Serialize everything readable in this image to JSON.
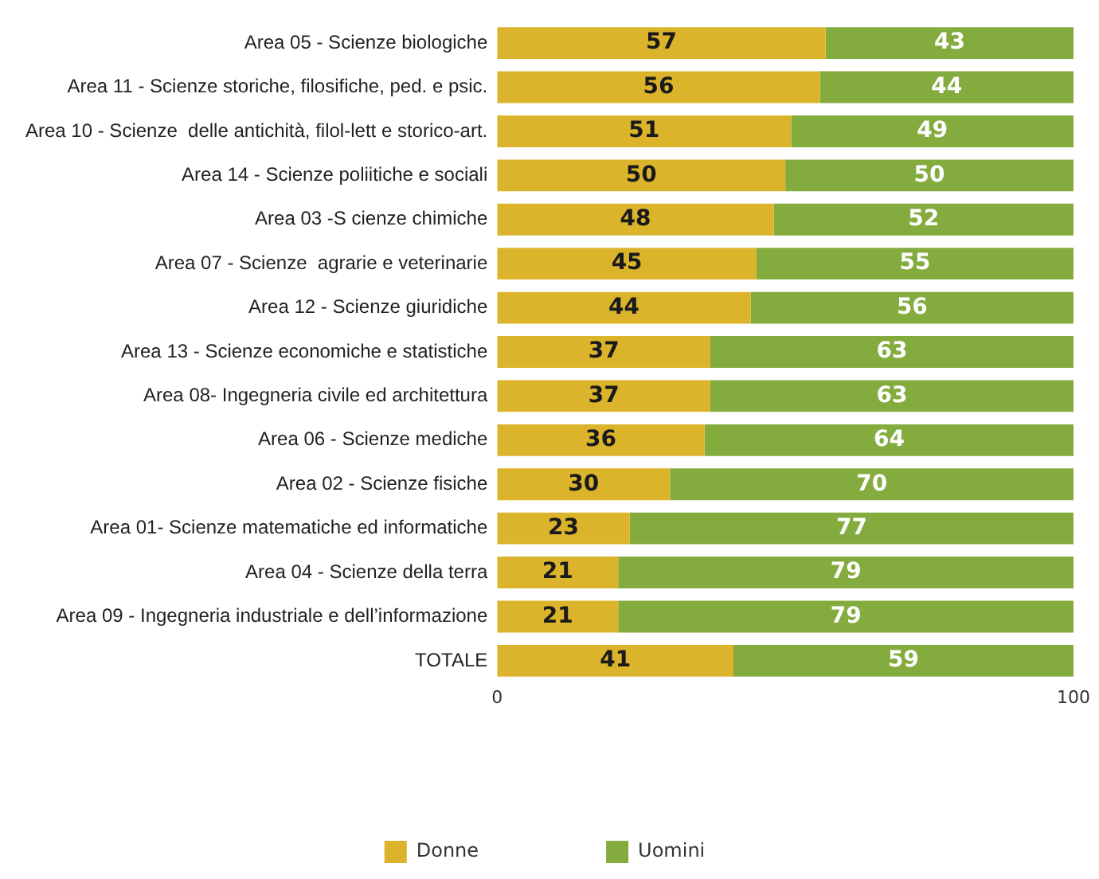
{
  "chart_data": {
    "type": "bar",
    "orientation": "horizontal",
    "stacked": true,
    "categories": [
      "Area 05 - Scienze biologiche",
      "Area 11 - Scienze storiche, filosifiche, ped. e psic.",
      "Area 10 - Scienze  delle antichità, filol-lett e storico-art.",
      "Area 14 - Scienze poliitiche e sociali",
      "Area 03 -S cienze chimiche",
      "Area 07 - Scienze  agrarie e veterinarie",
      "Area 12 - Scienze giuridiche",
      "Area 13 - Scienze economiche e statistiche",
      "Area 08- Ingegneria civile ed architettura",
      "Area 06 - Scienze mediche",
      "Area 02 - Scienze fisiche",
      "Area 01- Scienze matematiche ed informatiche",
      "Area 04 - Scienze della terra",
      "Area 09 - Ingegneria industriale e dell’informazione",
      "TOTALE"
    ],
    "series": [
      {
        "name": "Donne",
        "color": "#dbb42c",
        "values": [
          57,
          56,
          51,
          50,
          48,
          45,
          44,
          37,
          37,
          36,
          30,
          23,
          21,
          21,
          41
        ]
      },
      {
        "name": "Uomini",
        "color": "#84ab3e",
        "values": [
          43,
          44,
          49,
          50,
          52,
          55,
          56,
          63,
          63,
          64,
          70,
          77,
          79,
          79,
          59
        ]
      }
    ],
    "xlim": [
      0,
      100
    ],
    "xticks": [
      0,
      100
    ],
    "data_labels": true,
    "grid": false,
    "legend": "bottom"
  }
}
